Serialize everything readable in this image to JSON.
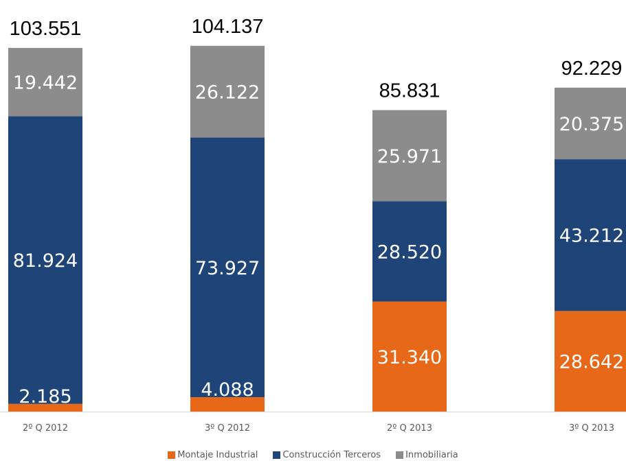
{
  "chart_data": {
    "type": "bar",
    "stacked": true,
    "categories": [
      "2º Q 2012",
      "3º Q 2012",
      "2º Q 2013",
      "3º Q 2013"
    ],
    "series": [
      {
        "name": "Montaje Industrial",
        "color": "#E8681A",
        "values": [
          2.185,
          4.088,
          31.34,
          28.642
        ],
        "labels": [
          "2.185",
          "4.088",
          "31.340",
          "28.642"
        ]
      },
      {
        "name": "Construcción Terceros",
        "color": "#1F4578",
        "values": [
          81.924,
          73.927,
          28.52,
          43.212
        ],
        "labels": [
          "81.924",
          "73.927",
          "28.520",
          "43.212"
        ]
      },
      {
        "name": "Inmobiliaria",
        "color": "#8C8C8C",
        "values": [
          19.442,
          26.122,
          25.971,
          20.375
        ],
        "labels": [
          "19.442",
          "26.122",
          "25.971",
          "20.375"
        ]
      }
    ],
    "totals": [
      "103.551",
      "104.137",
      "85.831",
      "92.229"
    ],
    "legend_position": "bottom"
  }
}
